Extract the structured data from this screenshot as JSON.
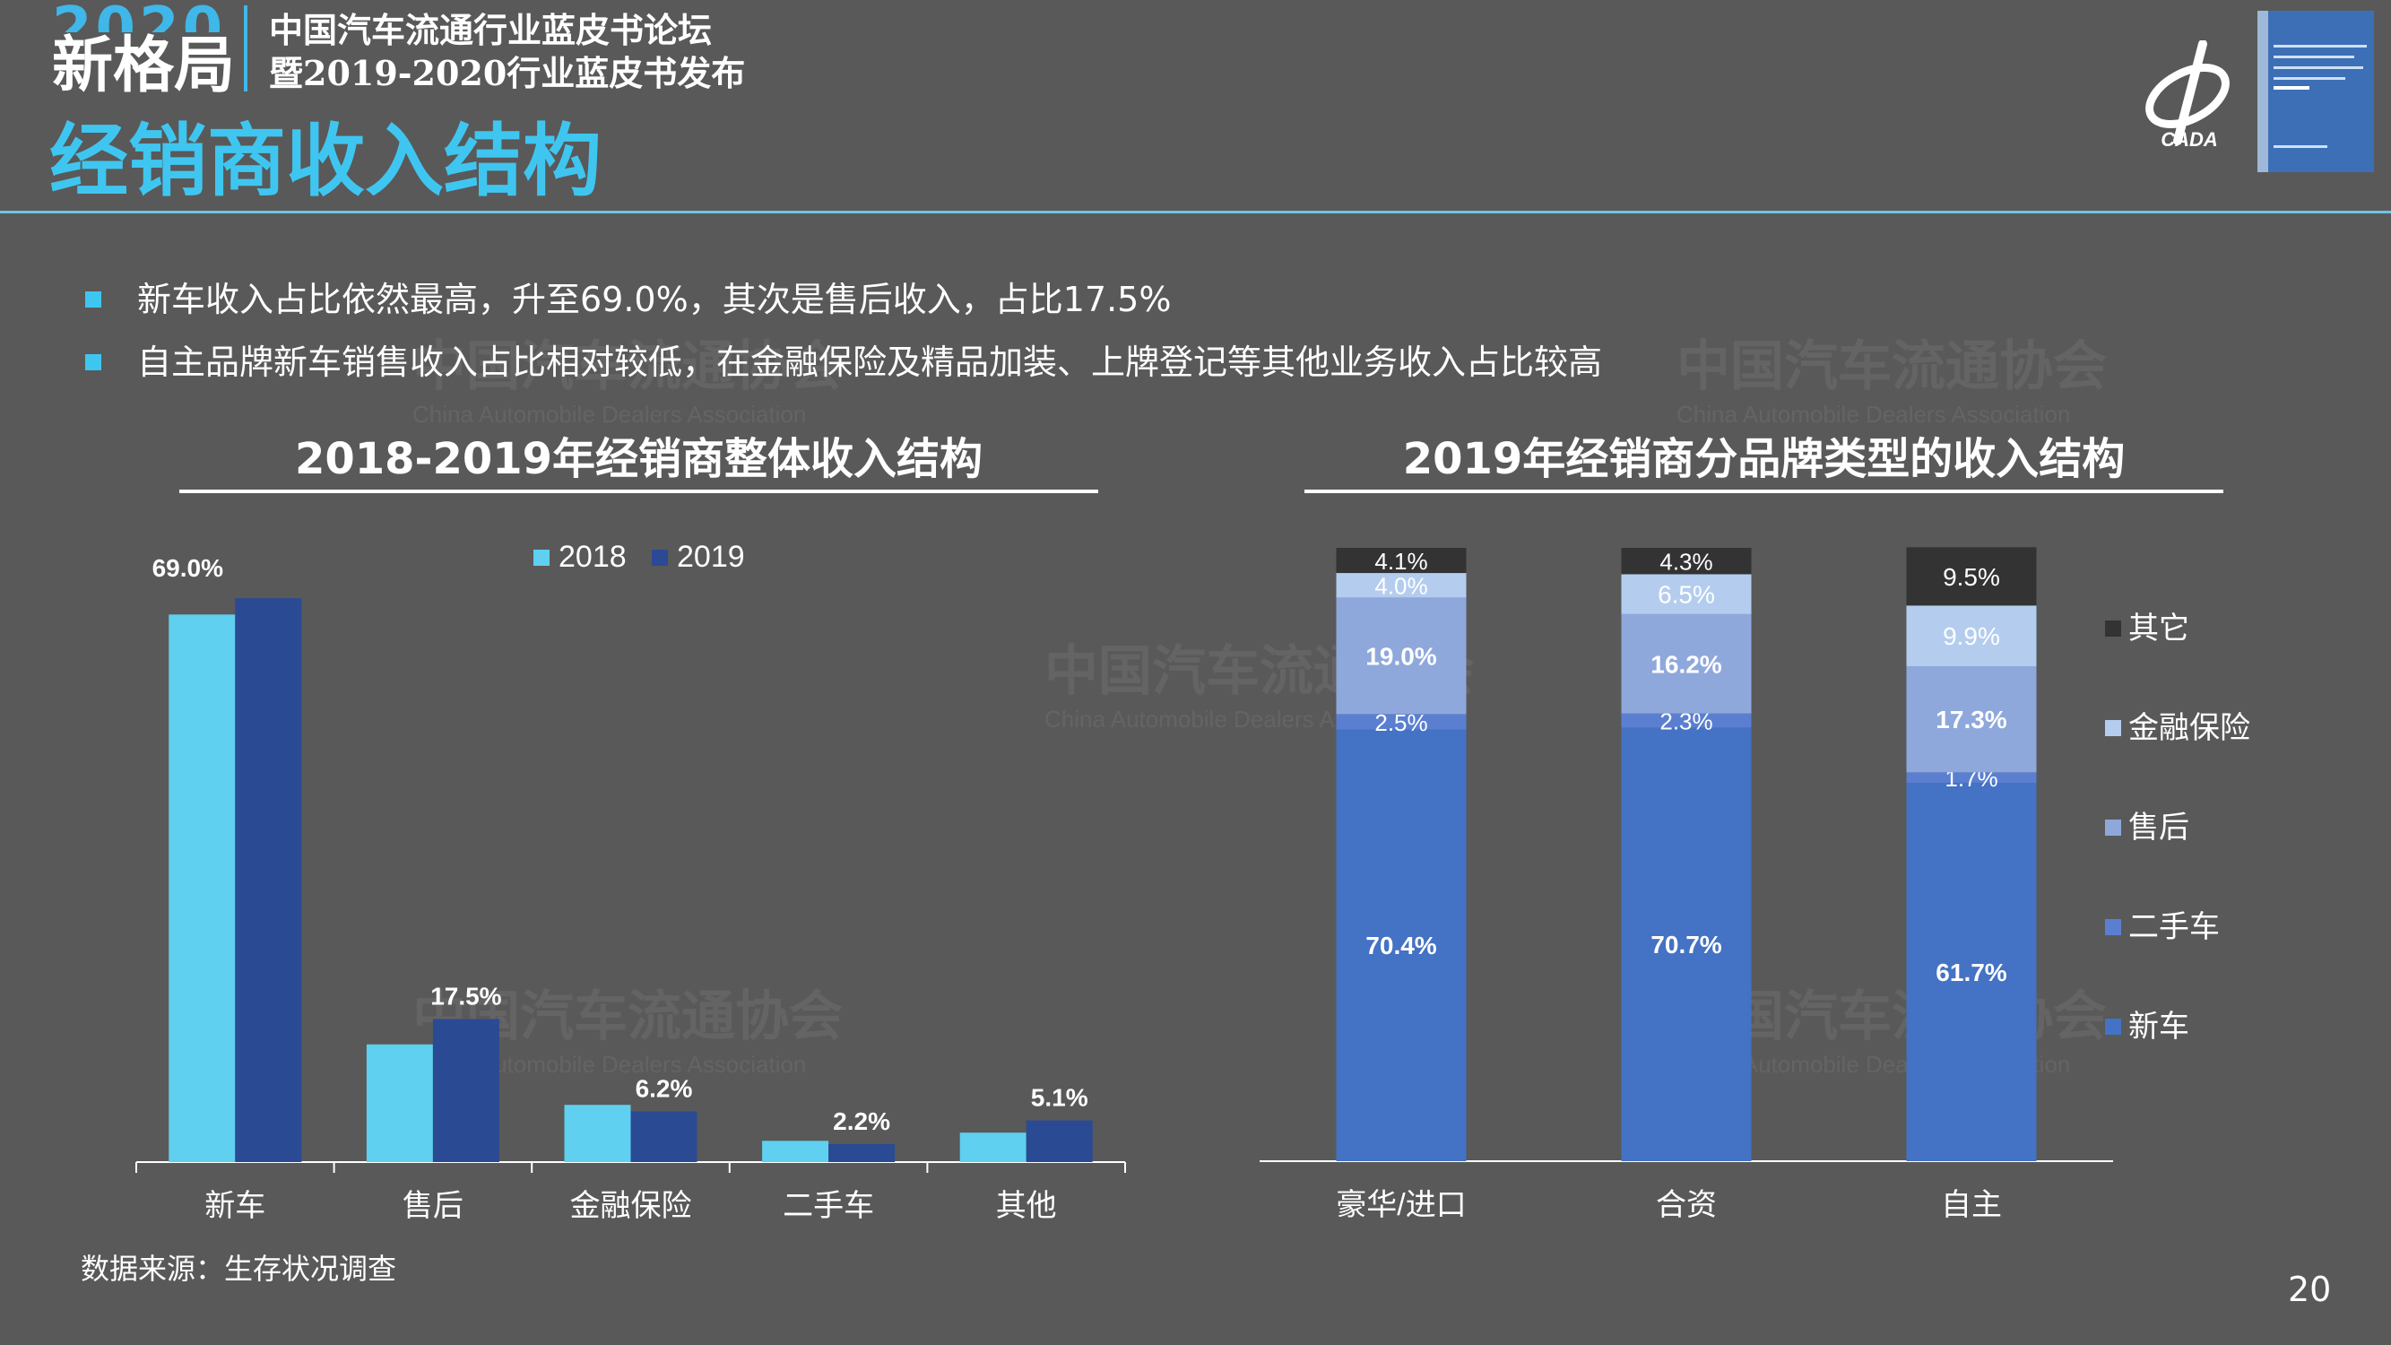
{
  "header": {
    "year": "2020",
    "brand": "新格局",
    "forum_line1": "中国汽车流通行业蓝皮书论坛",
    "forum_line2": "暨2019-2020行业蓝皮书发布",
    "page_title": "经销商收入结构",
    "logo_text": "CADA"
  },
  "bullets": [
    "新车收入占比依然最高，升至69.0%，其次是售后收入，占比17.5%",
    "自主品牌新车销售收入占比相对较低，在金融保险及精品加装、上牌登记等其他业务收入占比较高"
  ],
  "watermark": {
    "cn": "中国汽车流通协会",
    "en": "China Automobile Dealers Association"
  },
  "colors": {
    "background": "#595959",
    "accent": "#3fc6f0",
    "series_2018": "#5fd0ef",
    "series_2019": "#2a4a94",
    "new_car": "#4472c4",
    "used_car": "#5b7fd0",
    "after_sales": "#8fa8dc",
    "finance": "#b4cdee",
    "other": "#333333"
  },
  "chart_data": [
    {
      "type": "bar",
      "title": "2018-2019年经销商整体收入结构",
      "categories": [
        "新车",
        "售后",
        "金融保险",
        "二手车",
        "其他"
      ],
      "series": [
        {
          "name": "2018",
          "values": [
            67.0,
            14.4,
            7.0,
            2.6,
            3.6
          ]
        },
        {
          "name": "2019",
          "values": [
            69.0,
            17.5,
            6.2,
            2.2,
            5.1
          ]
        }
      ],
      "data_labels": [
        "69.0%",
        "17.5%",
        "6.2%",
        "2.2%",
        "5.1%"
      ],
      "ylim": [
        0,
        70
      ],
      "legend_position": "top",
      "grid": false
    },
    {
      "type": "bar",
      "stacked": true,
      "title": "2019年经销商分品牌类型的收入结构",
      "categories": [
        "豪华/进口",
        "合资",
        "自主"
      ],
      "series": [
        {
          "name": "新车",
          "values": [
            70.4,
            70.7,
            61.7
          ],
          "labels": [
            "70.4%",
            "70.7%",
            "61.7%"
          ]
        },
        {
          "name": "二手车",
          "values": [
            2.5,
            2.3,
            1.7
          ],
          "labels": [
            "2.5%",
            "2.3%",
            "1.7%"
          ]
        },
        {
          "name": "售后",
          "values": [
            19.0,
            16.2,
            17.3
          ],
          "labels": [
            "19.0%",
            "16.2%",
            "17.3%"
          ]
        },
        {
          "name": "金融保险",
          "values": [
            4.0,
            6.5,
            9.9
          ],
          "labels": [
            "4.0%",
            "6.5%",
            "9.9%"
          ]
        },
        {
          "name": "其它",
          "values": [
            4.1,
            4.3,
            9.5
          ],
          "labels": [
            "4.1%",
            "4.3%",
            "9.5%"
          ]
        }
      ],
      "legend_order": [
        "其它",
        "金融保险",
        "售后",
        "二手车",
        "新车"
      ],
      "ylim": [
        0,
        100
      ],
      "legend_position": "right",
      "grid": false
    }
  ],
  "footer": {
    "source": "数据来源：生存状况调查",
    "page_number": "20"
  }
}
